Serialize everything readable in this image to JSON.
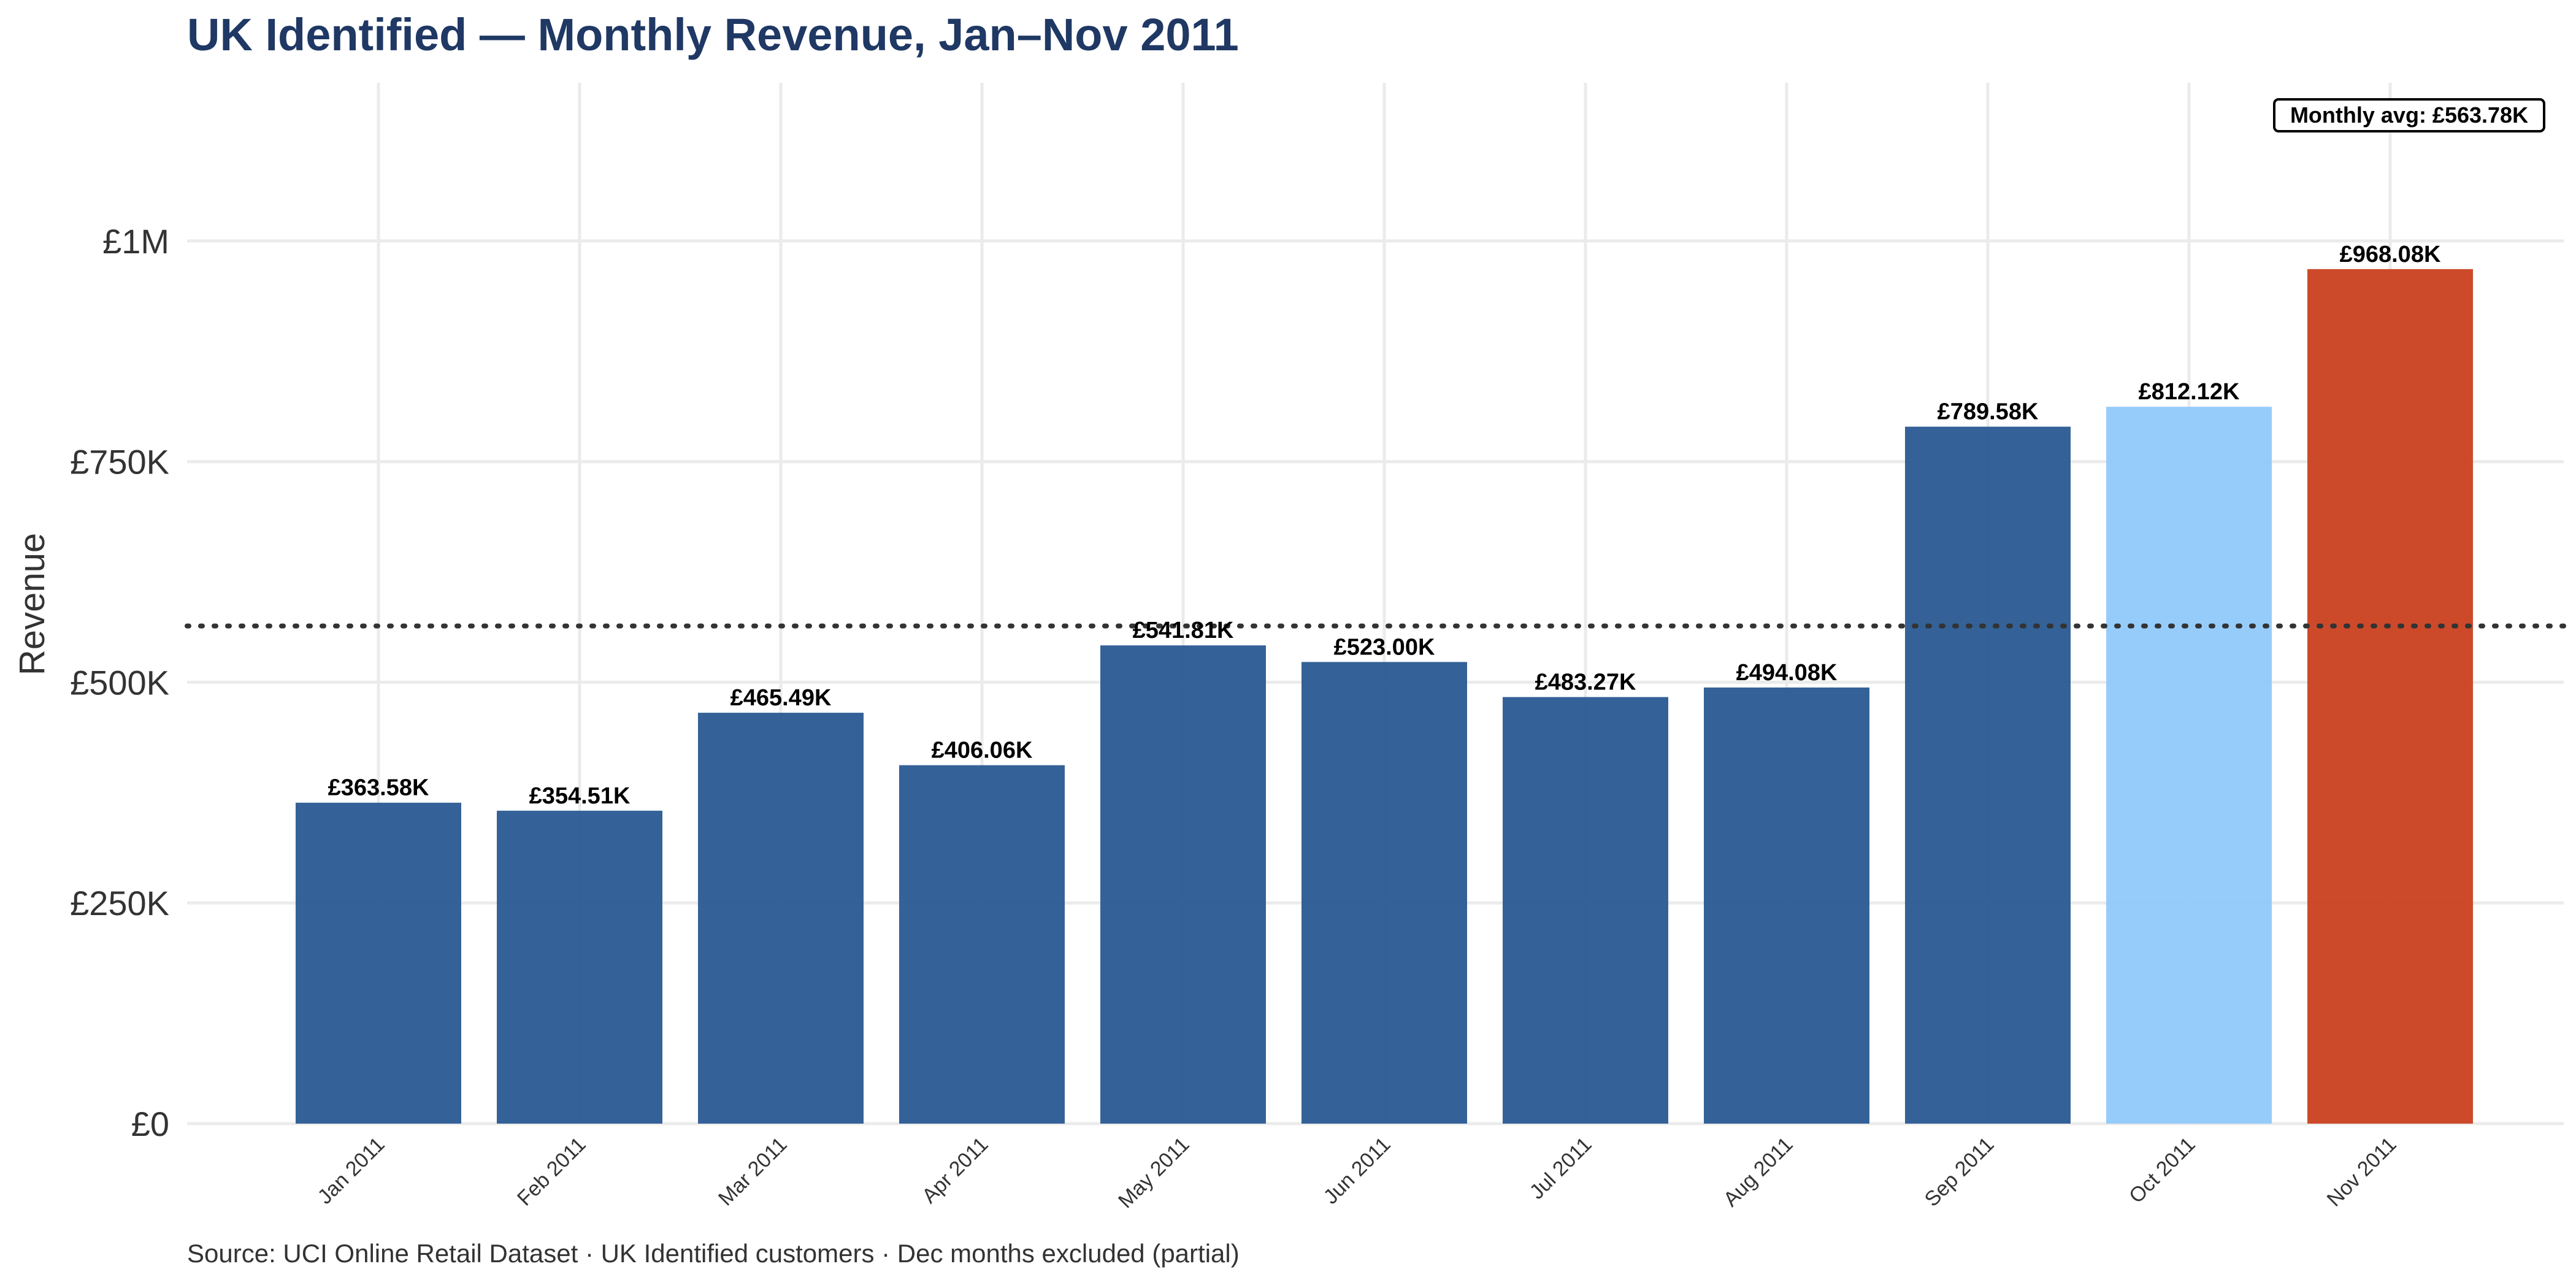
{
  "chart_data": {
    "type": "bar",
    "title": "UK Identified — Monthly Revenue, Jan–Nov 2011",
    "caption": "Source: UCI Online Retail Dataset · UK Identified customers · Dec months excluded (partial)",
    "ylabel": "Revenue",
    "xlabel": "",
    "ylim": [
      0,
      1200000
    ],
    "yticks": [
      0,
      250000,
      500000,
      750000,
      1000000
    ],
    "ytick_labels": [
      "£0",
      "£250K",
      "£500K",
      "£750K",
      "£1M"
    ],
    "categories": [
      "Jan 2011",
      "Feb 2011",
      "Mar 2011",
      "Apr 2011",
      "May 2011",
      "Jun 2011",
      "Jul 2011",
      "Aug 2011",
      "Sep 2011",
      "Oct 2011",
      "Nov 2011"
    ],
    "values": [
      363580,
      354510,
      465490,
      406060,
      541810,
      523000,
      483270,
      494080,
      789580,
      812120,
      968080
    ],
    "value_labels": [
      "£363.58K",
      "£354.51K",
      "£465.49K",
      "£406.06K",
      "£541.81K",
      "£523.00K",
      "£483.27K",
      "£494.08K",
      "£789.58K",
      "£812.12K",
      "£968.08K"
    ],
    "bar_colors": [
      "#295a92",
      "#295a92",
      "#295a92",
      "#295a92",
      "#295a92",
      "#295a92",
      "#295a92",
      "#295a92",
      "#295a92",
      "#90c9f9",
      "#c9401f"
    ],
    "reference_line": {
      "value": 563780,
      "style": "dotted",
      "color": "#333333",
      "label": "Monthly avg: £563.78K"
    },
    "grid": true,
    "legend": "none"
  }
}
